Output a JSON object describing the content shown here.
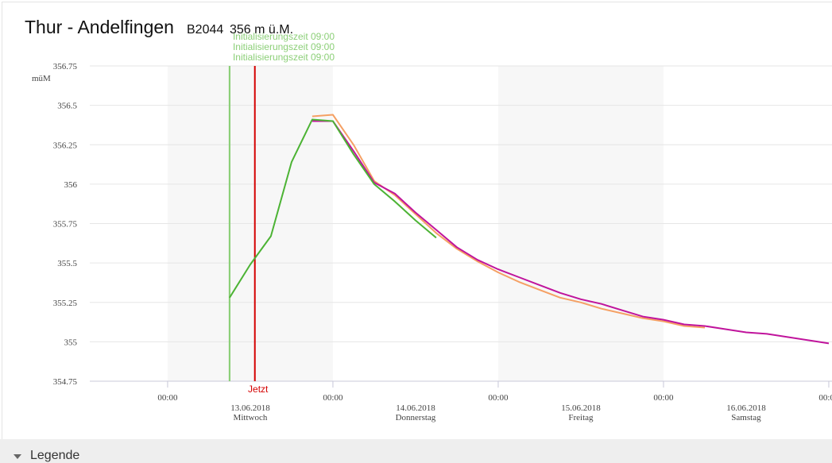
{
  "header": {
    "title": "Thur - Andelfingen",
    "code": "B2044",
    "elevation": "356 m ü.M."
  },
  "chart_data": {
    "type": "line",
    "y_unit": "müM",
    "x": [
      "2018-06-13T09:00",
      "2018-06-13T12:00",
      "2018-06-13T15:00",
      "2018-06-13T18:00",
      "2018-06-13T21:00",
      "2018-06-14T00:00",
      "2018-06-14T03:00",
      "2018-06-14T06:00",
      "2018-06-14T09:00",
      "2018-06-14T12:00",
      "2018-06-14T15:00",
      "2018-06-14T18:00",
      "2018-06-14T21:00",
      "2018-06-15T00:00",
      "2018-06-15T03:00",
      "2018-06-15T06:00",
      "2018-06-15T09:00",
      "2018-06-15T12:00",
      "2018-06-15T15:00",
      "2018-06-15T18:00",
      "2018-06-15T21:00",
      "2018-06-16T00:00",
      "2018-06-16T03:00",
      "2018-06-16T06:00",
      "2018-06-16T09:00",
      "2018-06-16T12:00",
      "2018-06-16T15:00",
      "2018-06-16T18:00",
      "2018-06-16T21:00",
      "2018-06-17T00:00"
    ],
    "series": [
      {
        "color": "#f5a064",
        "values": [
          null,
          null,
          null,
          null,
          356.43,
          356.44,
          356.25,
          356.02,
          355.93,
          355.81,
          355.69,
          355.59,
          355.51,
          355.44,
          355.38,
          355.33,
          355.28,
          355.25,
          355.21,
          355.18,
          355.15,
          355.13,
          355.1,
          355.09,
          null,
          null,
          null,
          null,
          null,
          null
        ]
      },
      {
        "color": "#c0149c",
        "values": [
          null,
          null,
          null,
          null,
          356.4,
          356.4,
          356.21,
          356.01,
          355.94,
          355.82,
          355.71,
          355.6,
          355.52,
          355.46,
          355.41,
          355.36,
          355.31,
          355.27,
          355.24,
          355.2,
          355.16,
          355.14,
          355.11,
          355.1,
          355.08,
          355.06,
          355.05,
          355.03,
          355.01,
          354.99
        ]
      },
      {
        "color": "#4cb334",
        "values": [
          355.28,
          355.49,
          355.67,
          356.14,
          356.41,
          356.4,
          356.19,
          356.0,
          355.89,
          355.77,
          355.66,
          null,
          null,
          null,
          null,
          null,
          null,
          null,
          null,
          null,
          null,
          null,
          null,
          null,
          null,
          null,
          null,
          null,
          null,
          null
        ]
      }
    ],
    "xlim": [
      "2018-06-12T12:42",
      "2018-06-17T00:28"
    ],
    "xticks": [
      {
        "value": "2018-06-13T00:00",
        "label": "00:00"
      },
      {
        "value": "2018-06-14T00:00",
        "label": "00:00"
      },
      {
        "value": "2018-06-15T00:00",
        "label": "00:00"
      },
      {
        "value": "2018-06-16T00:00",
        "label": "00:00"
      },
      {
        "value": "2018-06-17T00:00",
        "label": "00:00"
      }
    ],
    "day_labels": [
      {
        "date": "13.06.2018",
        "weekday": "Mittwoch"
      },
      {
        "date": "14.06.2018",
        "weekday": "Donnerstag"
      },
      {
        "date": "15.06.2018",
        "weekday": "Freitag"
      },
      {
        "date": "16.06.2018",
        "weekday": "Samstag"
      }
    ],
    "ylim": [
      354.75,
      356.75
    ],
    "yticks": [
      354.75,
      355,
      355.25,
      355.5,
      355.75,
      356,
      356.25,
      356.5,
      356.75
    ],
    "grid": true,
    "markers": [
      {
        "x": "2018-06-13T09:00",
        "label": "Initialisierungszeit 09:00",
        "color": "#8ccf78"
      },
      {
        "x": "2018-06-13T09:00",
        "label": "Initialisierungszeit 09:00",
        "color": "#8ccf78"
      },
      {
        "x": "2018-06-13T09:00",
        "label": "Initialisierungszeit 09:00",
        "color": "#8ccf78"
      },
      {
        "x": "2018-06-13T12:40",
        "label": "Jetzt",
        "color": "#d40000"
      }
    ]
  },
  "legend_toggle": "Legende"
}
